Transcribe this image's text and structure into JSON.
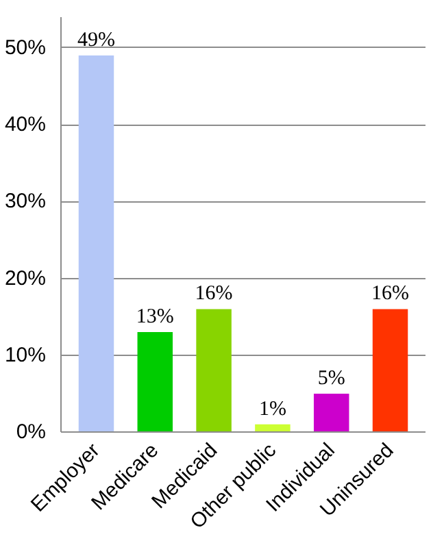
{
  "chart_data": {
    "type": "bar",
    "categories": [
      "Employer",
      "Medicare",
      "Medicaid",
      "Other public",
      "Individual",
      "Uninsured"
    ],
    "values": [
      49,
      13,
      16,
      1,
      5,
      16
    ],
    "colors": [
      "#b4c7f7",
      "#00cc00",
      "#88d400",
      "#ccff33",
      "#cc00cc",
      "#ff3300"
    ],
    "value_labels": [
      "49%",
      "13%",
      "16%",
      "1%",
      "5%",
      "16%"
    ],
    "ylim": [
      0,
      54
    ],
    "yticks": [
      {
        "value": 0,
        "label": "0%"
      },
      {
        "value": 10,
        "label": "10%"
      },
      {
        "value": 20,
        "label": "20%"
      },
      {
        "value": 30,
        "label": "30%"
      },
      {
        "value": 40,
        "label": "40%"
      },
      {
        "value": 50,
        "label": "50%"
      }
    ],
    "grid": "y"
  }
}
